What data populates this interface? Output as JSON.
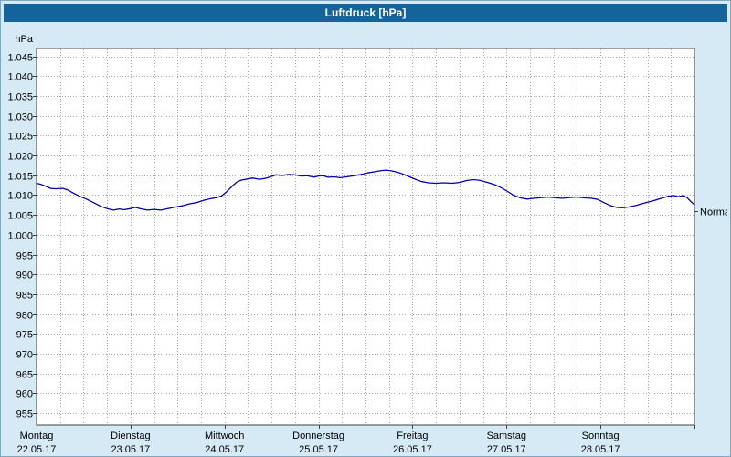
{
  "window": {
    "title": "Luftdruck [hPa]"
  },
  "colors": {
    "titlebar": "#15639b",
    "title_text": "#ffffff",
    "window_bg": "#d6eaf5",
    "plot_bg": "#ffffff",
    "axis": "#404040",
    "grid": "#a8a8a8",
    "line": "#0202a8"
  },
  "chart_data": {
    "type": "line",
    "title": "Luftdruck [hPa]",
    "y_unit_label": "hPa",
    "ylim": [
      952,
      1047
    ],
    "ytick_step": 5,
    "ytick_values": [
      1045,
      1040,
      1035,
      1030,
      1025,
      1020,
      1015,
      1010,
      1005,
      1000,
      995,
      990,
      985,
      980,
      975,
      970,
      965,
      960,
      955
    ],
    "ytick_labels": [
      "1.045",
      "1.040",
      "1.035",
      "1.030",
      "1.025",
      "1.020",
      "1.015",
      "1.010",
      "1.005",
      "1.000",
      "995",
      "990",
      "985",
      "980",
      "975",
      "970",
      "965",
      "960",
      "955"
    ],
    "x_range_days": [
      0,
      7
    ],
    "minor_vlines_per_day": 4,
    "grid": "dotted",
    "days": [
      {
        "weekday": "Montag",
        "date": "22.05.17"
      },
      {
        "weekday": "Dienstag",
        "date": "23.05.17"
      },
      {
        "weekday": "Mittwoch",
        "date": "24.05.17"
      },
      {
        "weekday": "Donnerstag",
        "date": "25.05.17"
      },
      {
        "weekday": "Freitag",
        "date": "26.05.17"
      },
      {
        "weekday": "Samstag",
        "date": "27.05.17"
      },
      {
        "weekday": "Sonntag",
        "date": "28.05.17"
      }
    ],
    "normal": {
      "label": "Normal",
      "value": 1006
    },
    "series": [
      {
        "name": "Luftdruck",
        "color": "#0202a8",
        "x": [
          0,
          0.05,
          0.1,
          0.15,
          0.2,
          0.28,
          0.33,
          0.4,
          0.47,
          0.53,
          0.6,
          0.68,
          0.75,
          0.82,
          0.88,
          0.93,
          1,
          1.05,
          1.1,
          1.18,
          1.25,
          1.32,
          1.4,
          1.48,
          1.55,
          1.63,
          1.7,
          1.78,
          1.85,
          1.92,
          1.97,
          2.02,
          2.08,
          2.13,
          2.18,
          2.25,
          2.3,
          2.37,
          2.43,
          2.5,
          2.55,
          2.62,
          2.68,
          2.75,
          2.82,
          2.88,
          2.95,
          3,
          3.05,
          3.1,
          3.17,
          3.23,
          3.3,
          3.38,
          3.45,
          3.52,
          3.6,
          3.67,
          3.72,
          3.78,
          3.85,
          3.92,
          3.97,
          4.03,
          4.1,
          4.17,
          4.25,
          4.33,
          4.42,
          4.5,
          4.58,
          4.65,
          4.72,
          4.8,
          4.88,
          4.95,
          5.02,
          5.08,
          5.15,
          5.22,
          5.3,
          5.38,
          5.45,
          5.53,
          5.6,
          5.68,
          5.75,
          5.83,
          5.9,
          5.97,
          6.03,
          6.1,
          6.17,
          6.23,
          6.3,
          6.38,
          6.45,
          6.52,
          6.58,
          6.65,
          6.72,
          6.78,
          6.83,
          6.88,
          6.92,
          6.96,
          7
        ],
        "values": [
          1013,
          1012.7,
          1012.2,
          1011.7,
          1011.6,
          1011.7,
          1011.3,
          1010.4,
          1009.6,
          1009,
          1008.2,
          1007.2,
          1006.6,
          1006.2,
          1006.5,
          1006.3,
          1006.6,
          1006.9,
          1006.6,
          1006.2,
          1006.4,
          1006.2,
          1006.6,
          1007,
          1007.3,
          1007.8,
          1008.1,
          1008.7,
          1009.1,
          1009.4,
          1009.8,
          1010.8,
          1012.2,
          1013.3,
          1013.8,
          1014.1,
          1014.3,
          1014,
          1014.2,
          1014.7,
          1015.1,
          1015,
          1015.2,
          1015.1,
          1014.8,
          1014.9,
          1014.5,
          1014.8,
          1014.9,
          1014.5,
          1014.6,
          1014.4,
          1014.6,
          1014.9,
          1015.2,
          1015.6,
          1015.9,
          1016.2,
          1016.3,
          1016.1,
          1015.7,
          1015.1,
          1014.6,
          1014,
          1013.4,
          1013.1,
          1013,
          1013.1,
          1013,
          1013.2,
          1013.7,
          1013.9,
          1013.7,
          1013.2,
          1012.6,
          1011.8,
          1010.8,
          1009.9,
          1009.3,
          1009,
          1009.2,
          1009.4,
          1009.5,
          1009.3,
          1009.2,
          1009.4,
          1009.5,
          1009.3,
          1009.2,
          1008.9,
          1008.2,
          1007.4,
          1006.9,
          1006.8,
          1007,
          1007.4,
          1007.9,
          1008.3,
          1008.7,
          1009.2,
          1009.7,
          1009.9,
          1009.6,
          1009.9,
          1009.4,
          1008.4,
          1007.6
        ]
      }
    ]
  }
}
